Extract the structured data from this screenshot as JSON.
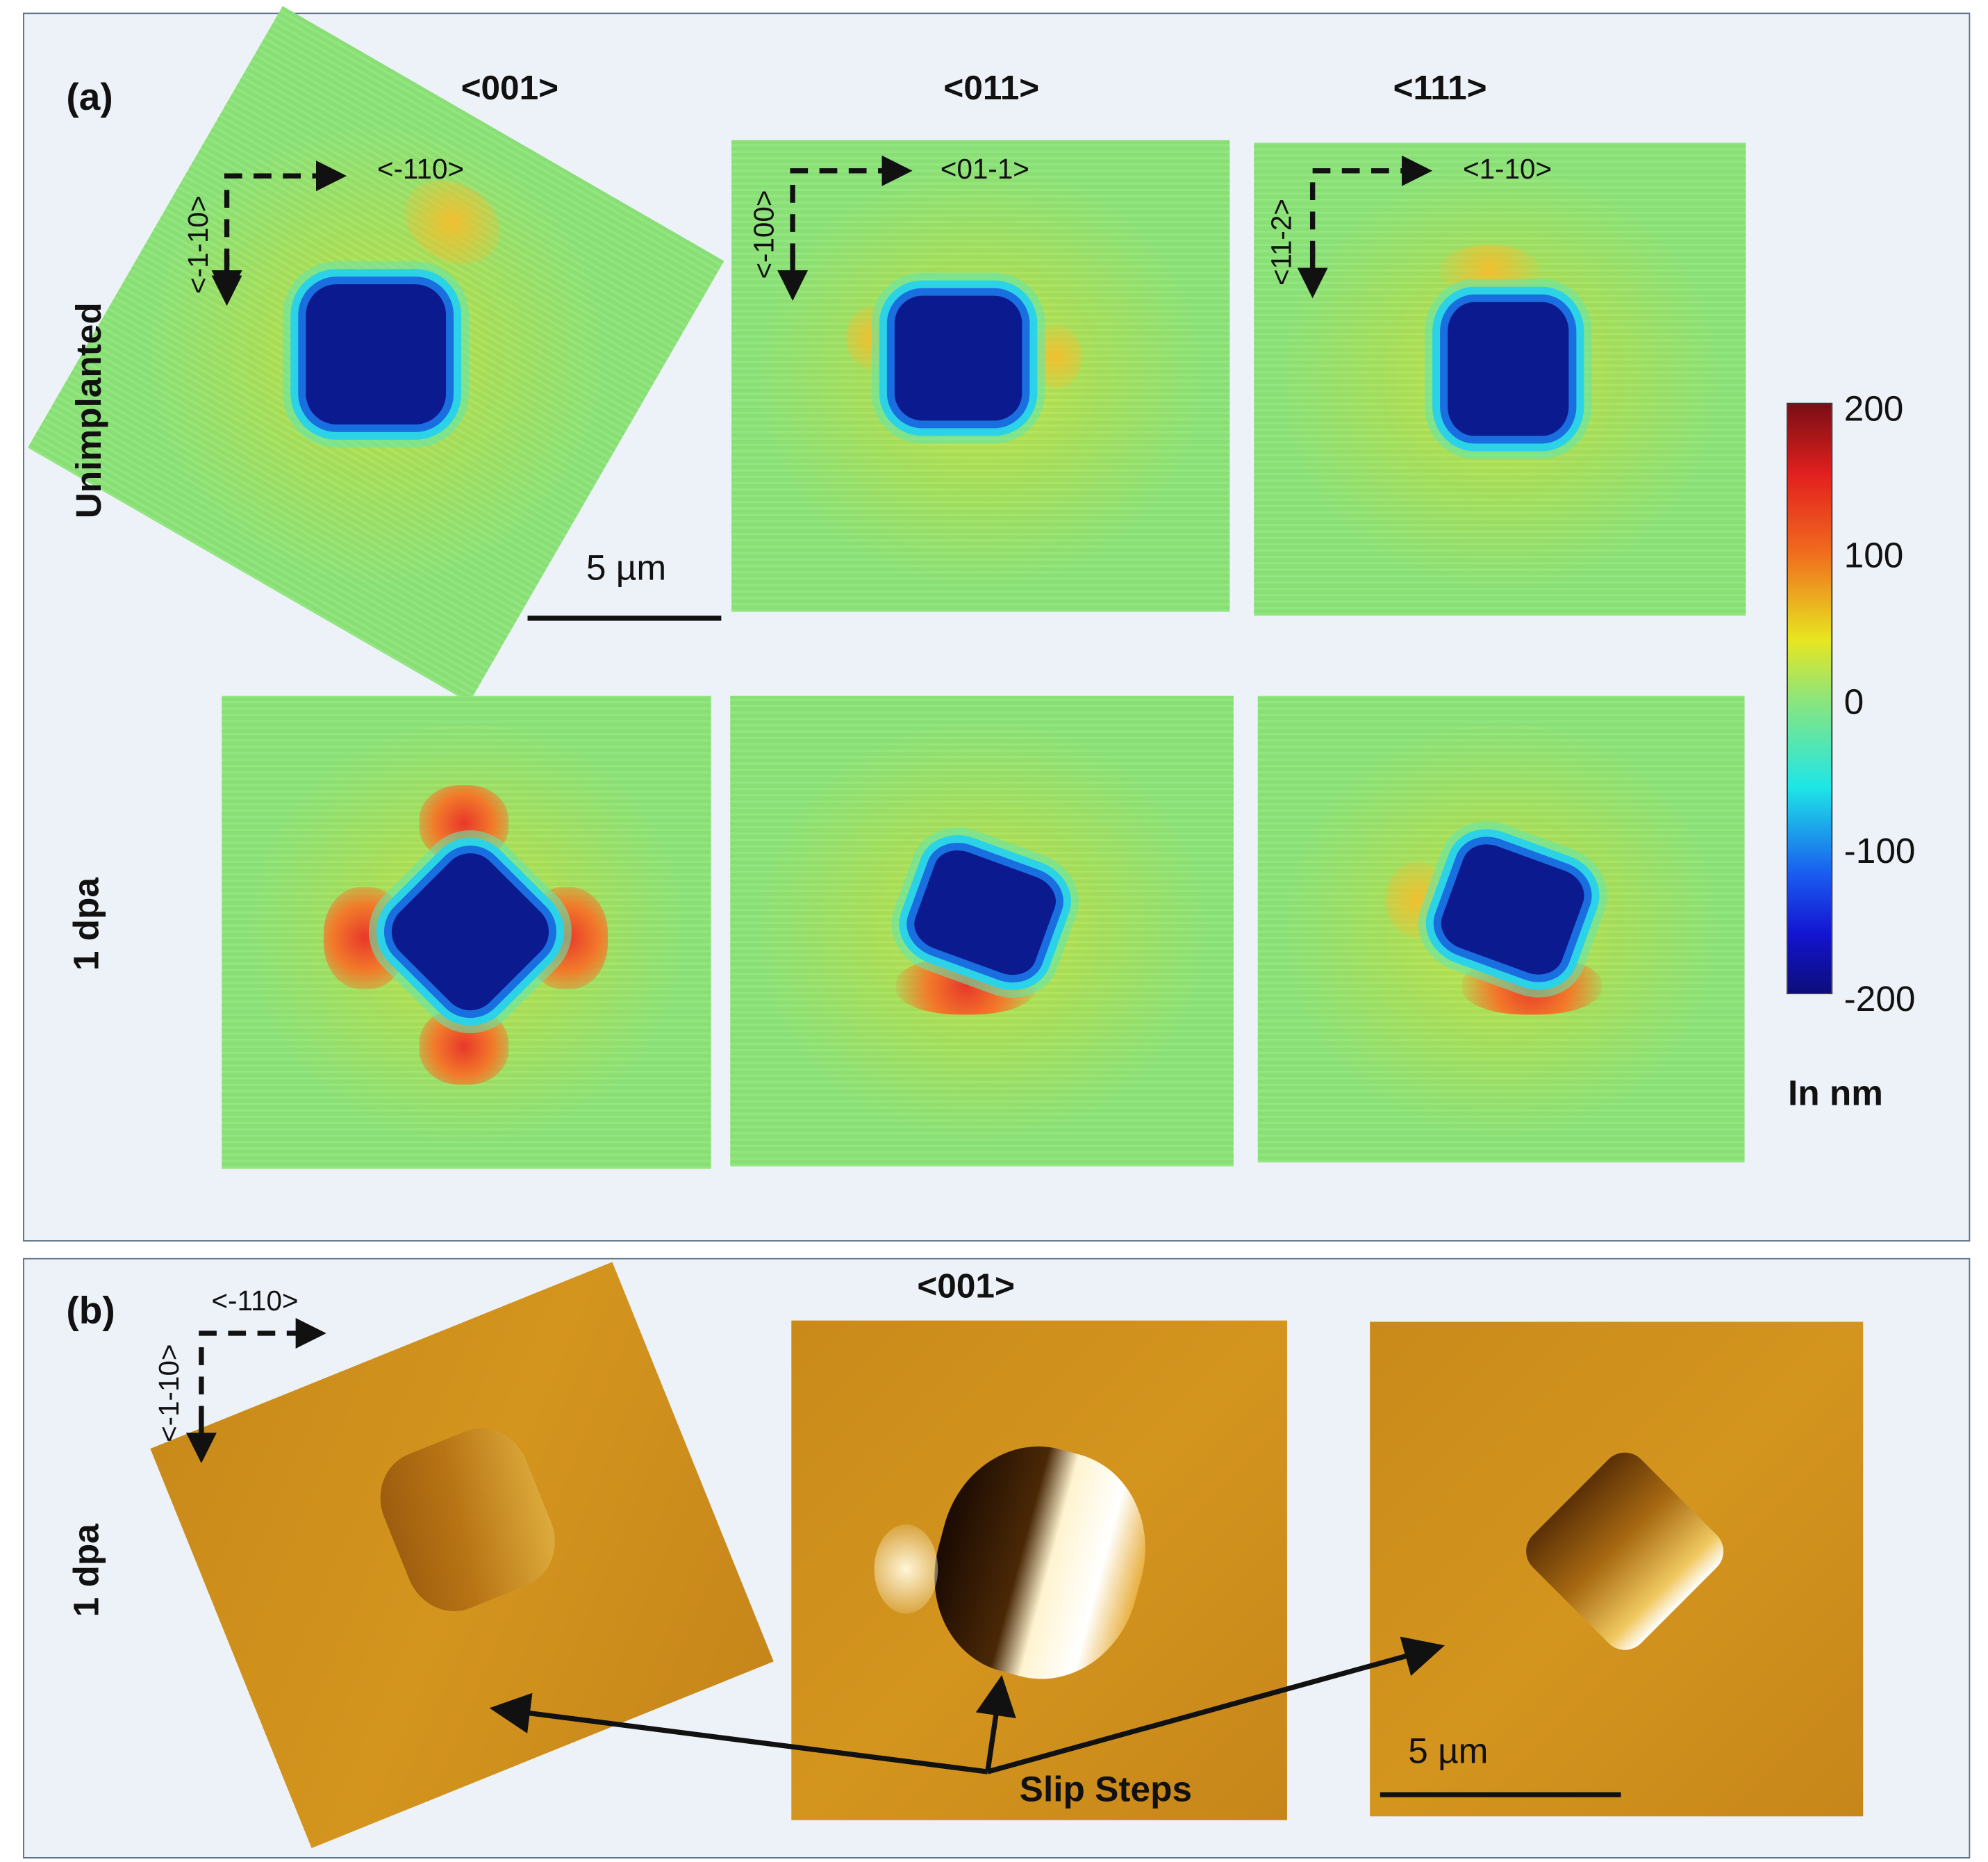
{
  "panel_a": {
    "label": "(a)",
    "columns": [
      "<001>",
      "<011>",
      "<111>"
    ],
    "rows": [
      "Unimplanted",
      "1 dpa"
    ],
    "axes": [
      {
        "horizontal": "<-110>",
        "vertical": "<-1-10>"
      },
      {
        "horizontal": "<01-1>",
        "vertical": "<-100>"
      },
      {
        "horizontal": "<1-10>",
        "vertical": "<11-2>"
      }
    ],
    "scale_bar": "5 µm",
    "colorbar": {
      "ticks": [
        "200",
        "100",
        "0",
        "-100",
        "-200"
      ],
      "unit": "In nm",
      "range": [
        -200,
        200
      ],
      "colormap": "jet"
    }
  },
  "panel_b": {
    "label": "(b)",
    "column": "<001>",
    "row": "1 dpa",
    "axes": {
      "horizontal": "<-110>",
      "vertical": "<-1-10>"
    },
    "annotation": "Slip Steps",
    "scale_bar": "5 µm"
  },
  "colors": {
    "panel_bg": "#edf2f8",
    "border": "#5b7186",
    "afm_amber": "#d4951e",
    "pit_blue": "#0b1a8f"
  }
}
